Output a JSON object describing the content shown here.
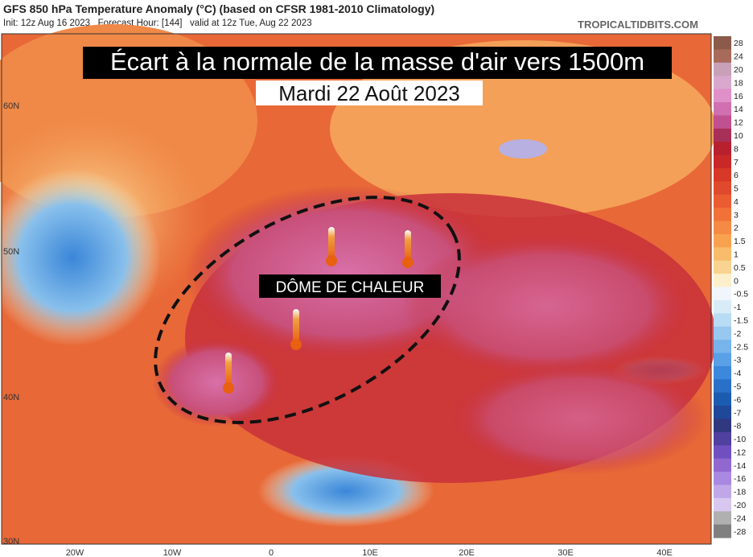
{
  "header": {
    "title": "GFS 850 hPa Temperature Anomaly (°C) (based on CFSR 1981-2010 Climatology)",
    "subtitle": "Init: 12z Aug 16 2023   Forecast Hour: [144]   valid at 12z Tue, Aug 22 2023",
    "site": "TROPICALTIDBITS.COM"
  },
  "overlay": {
    "title": "Écart à la normale de la masse d'air vers 1500m",
    "date": "Mardi 22 Août 2023",
    "label": "DÔME DE CHALEUR"
  },
  "latitudes": [
    "60N",
    "50N",
    "40N",
    "30N"
  ],
  "longitudes": [
    "20W",
    "10W",
    "0",
    "10E",
    "20E",
    "30E",
    "40E"
  ],
  "colorbar": {
    "labels": [
      "28",
      "24",
      "20",
      "18",
      "16",
      "14",
      "12",
      "10",
      "8",
      "7",
      "6",
      "5",
      "4",
      "3",
      "2",
      "1.5",
      "1",
      "0.5",
      "0",
      "-0.5",
      "-1",
      "-1.5",
      "-2",
      "-2.5",
      "-3",
      "-4",
      "-5",
      "-6",
      "-7",
      "-8",
      "-10",
      "-12",
      "-14",
      "-16",
      "-18",
      "-20",
      "-24",
      "-28"
    ]
  }
}
